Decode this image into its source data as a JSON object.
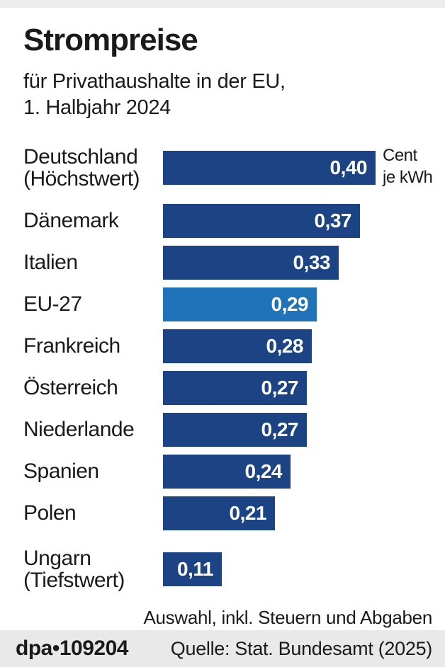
{
  "header": {
    "title": "Strompreise",
    "subtitle_line1": "für Privathaushalte in der EU,",
    "subtitle_line2": "1. Halbjahr 2024"
  },
  "unit_label": {
    "line1": "Cent",
    "line2": "je kWh"
  },
  "footnote": "Auswahl, inkl. Steuern und Abgaben",
  "footer": {
    "brand": "dpa",
    "separator": "•",
    "graphic_id": "109204",
    "source": "Quelle: Stat. Bundesamt (2025)"
  },
  "colors": {
    "bar": "#1c4484",
    "highlight": "#2173b9",
    "value_text": "#ffffff",
    "top_strip": "#ececec",
    "footer_bg": "#e9e9e9"
  },
  "chart_data": {
    "type": "bar",
    "orientation": "horizontal",
    "title": "Strompreise für Privathaushalte in der EU, 1. Halbjahr 2024",
    "unit": "Cent je kWh",
    "xlim": [
      0,
      0.4
    ],
    "grid": false,
    "legend": false,
    "note": "Auswahl, inkl. Steuern und Abgaben",
    "source": "Quelle: Stat. Bundesamt (2025)",
    "rows": [
      {
        "label_lines": [
          "Deutschland",
          "(Höchstwert)"
        ],
        "value": 0.4,
        "value_label": "0,40",
        "highlight": false
      },
      {
        "label_lines": [
          "Dänemark"
        ],
        "value": 0.37,
        "value_label": "0,37",
        "highlight": false
      },
      {
        "label_lines": [
          "Italien"
        ],
        "value": 0.33,
        "value_label": "0,33",
        "highlight": false
      },
      {
        "label_lines": [
          "EU-27"
        ],
        "value": 0.29,
        "value_label": "0,29",
        "highlight": true
      },
      {
        "label_lines": [
          "Frankreich"
        ],
        "value": 0.28,
        "value_label": "0,28",
        "highlight": false
      },
      {
        "label_lines": [
          "Österreich"
        ],
        "value": 0.27,
        "value_label": "0,27",
        "highlight": false
      },
      {
        "label_lines": [
          "Niederlande"
        ],
        "value": 0.27,
        "value_label": "0,27",
        "highlight": false
      },
      {
        "label_lines": [
          "Spanien"
        ],
        "value": 0.24,
        "value_label": "0,24",
        "highlight": false
      },
      {
        "label_lines": [
          "Polen"
        ],
        "value": 0.21,
        "value_label": "0,21",
        "highlight": false
      },
      {
        "label_lines": [
          "Ungarn",
          "(Tiefstwert)"
        ],
        "value": 0.11,
        "value_label": "0,11",
        "highlight": false
      }
    ]
  }
}
